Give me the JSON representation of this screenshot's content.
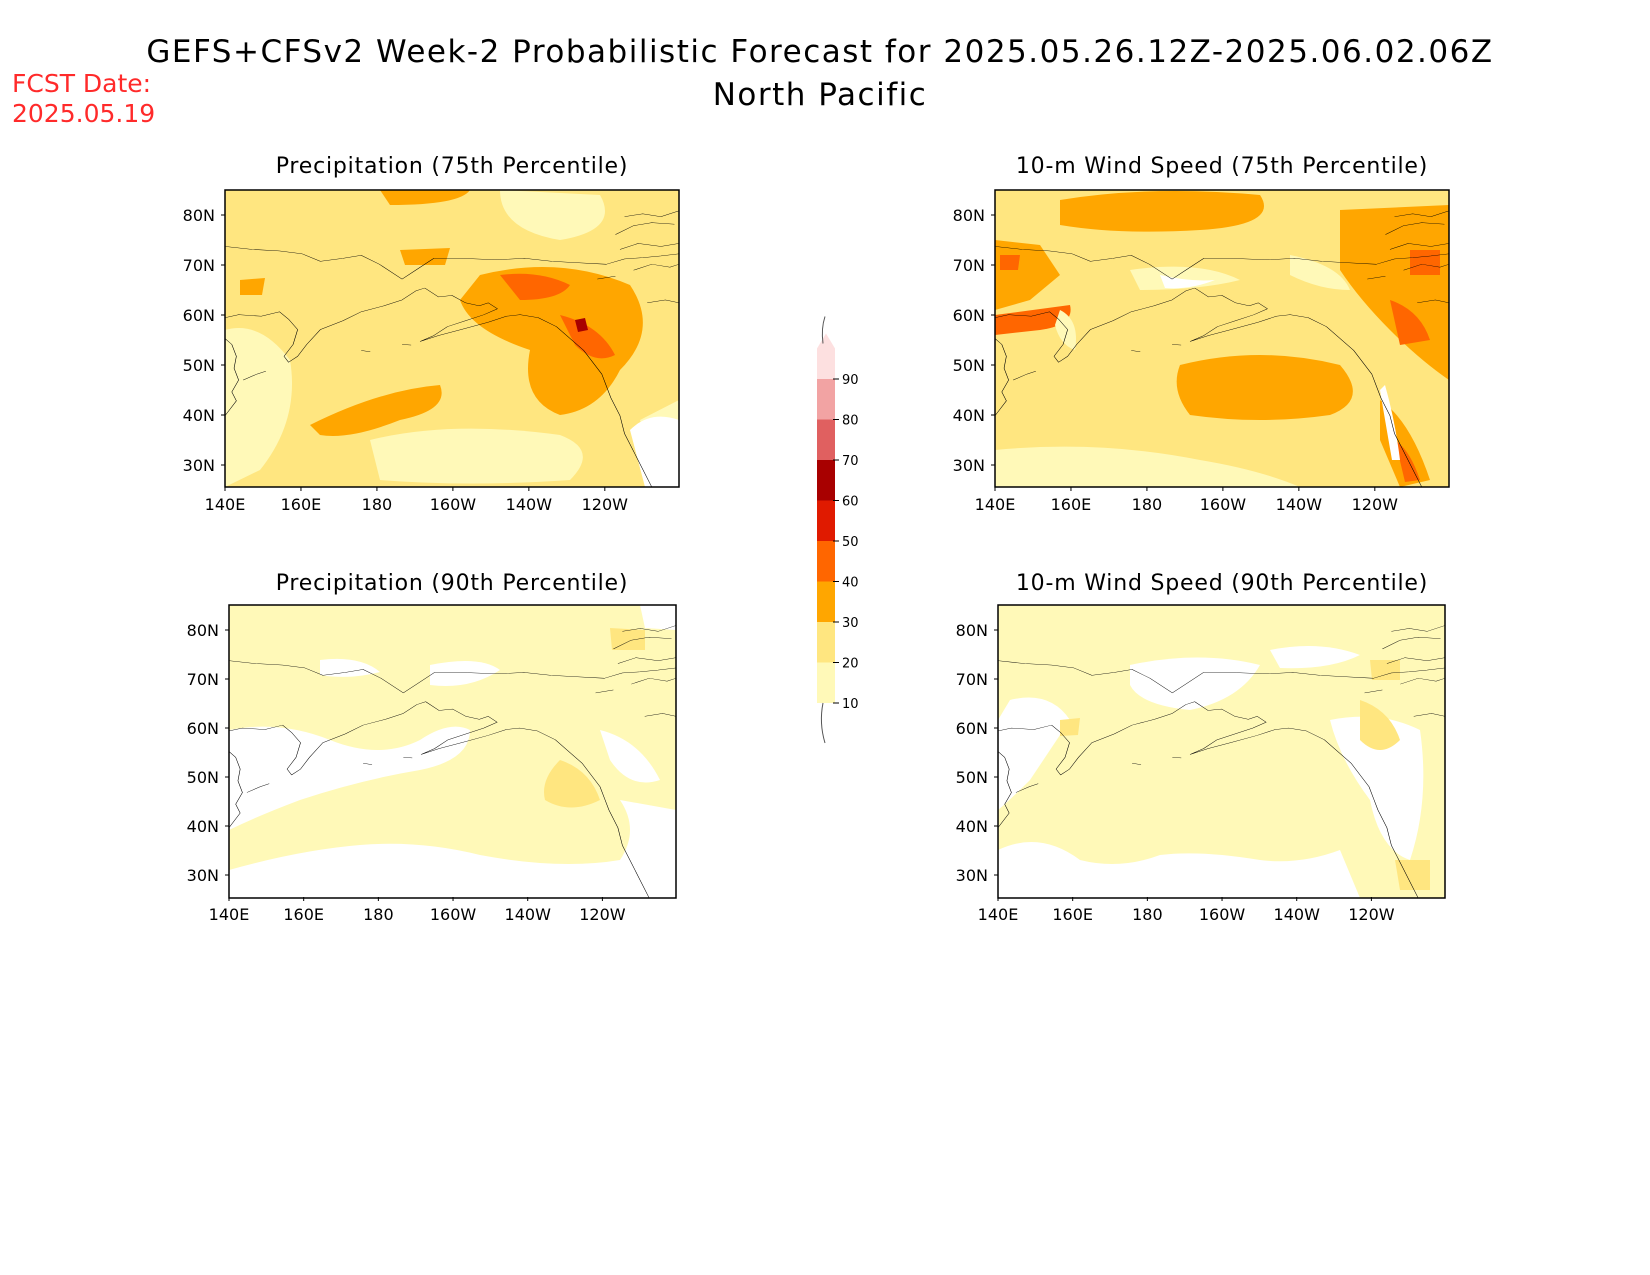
{
  "header": {
    "title": "GEFS+CFSv2 Week-2 Probabilistic Forecast for 2025.05.26.12Z-2025.06.02.06Z",
    "subtitle": "North Pacific",
    "fcst_label": "FCST Date:",
    "fcst_value": "2025.05.19"
  },
  "axes": {
    "lon_ticks": [
      "140E",
      "160E",
      "180",
      "160W",
      "140W",
      "120W"
    ],
    "lat_ticks": [
      "80N",
      "70N",
      "60N",
      "50N",
      "40N",
      "30N"
    ]
  },
  "colorbar": {
    "levels": [
      "10",
      "20",
      "30",
      "40",
      "50",
      "60",
      "70",
      "80",
      "90"
    ],
    "colors": [
      "#fff9b8",
      "#ffe680",
      "#ffa600",
      "#ff6600",
      "#e01a00",
      "#a80000",
      "#e06060",
      "#f2a3a3",
      "#fde0e0"
    ]
  },
  "panels": [
    {
      "id": "precip-75",
      "title": "Precipitation (75th Percentile)",
      "base_color": "#ffe680"
    },
    {
      "id": "wind-75",
      "title": "10-m Wind Speed (75th Percentile)",
      "base_color": "#ffe680"
    },
    {
      "id": "precip-90",
      "title": "Precipitation (90th Percentile)",
      "base_color": "#fff9b8"
    },
    {
      "id": "wind-90",
      "title": "10-m Wind Speed (90th Percentile)",
      "base_color": "#fff9b8"
    }
  ]
}
